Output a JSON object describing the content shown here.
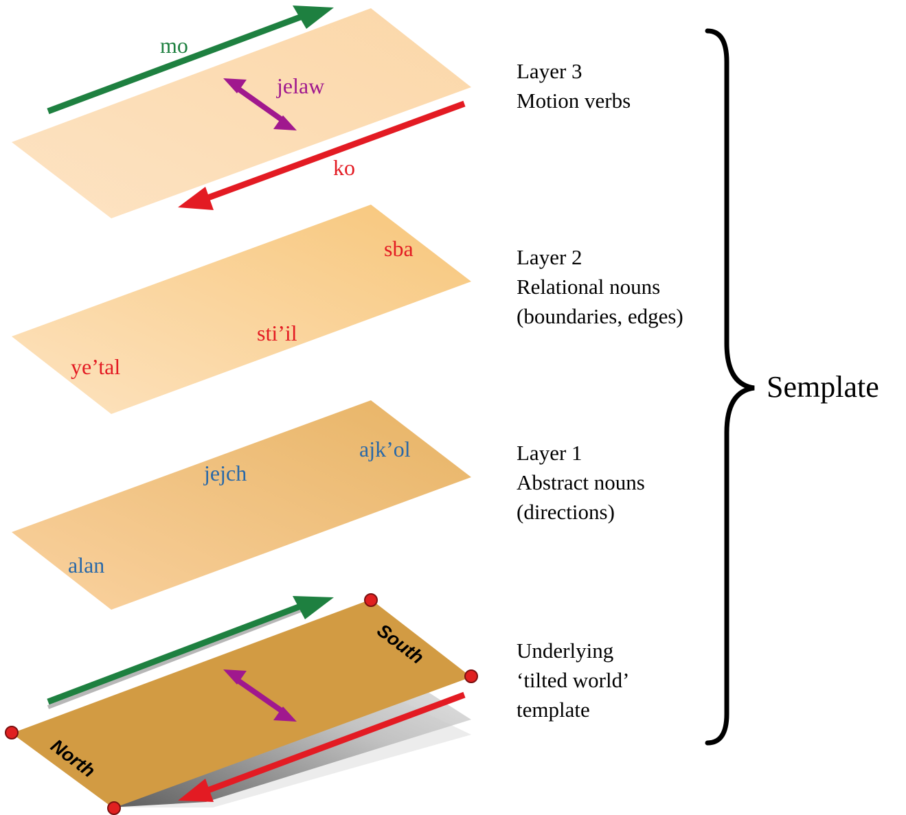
{
  "colors": {
    "green": "#1e8040",
    "red": "#e31b23",
    "magenta": "#a0188e",
    "blue": "#2868a8",
    "layer_pale": "#fde1bc",
    "layer_mid": "#f7c87e",
    "layer_tan": "#e8b466",
    "base_dark": "#d29b43",
    "corner_dot": "#e02020"
  },
  "layer3": {
    "word_mo": "mo",
    "word_jelaw": "jelaw",
    "word_ko": "ko",
    "title": "Layer 3",
    "line2": "Motion verbs"
  },
  "layer2": {
    "word_sba": "sba",
    "word_stiil": "sti’il",
    "word_yetal": "ye’tal",
    "title": "Layer 2",
    "line2": "Relational nouns",
    "line3": "(boundaries, edges)"
  },
  "layer1": {
    "word_ajkol": "ajk’ol",
    "word_jejch": "jejch",
    "word_alan": "alan",
    "title": "Layer 1",
    "line2": "Abstract nouns",
    "line3": "(directions)"
  },
  "base": {
    "north": "North",
    "south": "South",
    "line1": "Underlying",
    "line2": "‘tilted world’",
    "line3": "template"
  },
  "bracket_label": "Semplate"
}
